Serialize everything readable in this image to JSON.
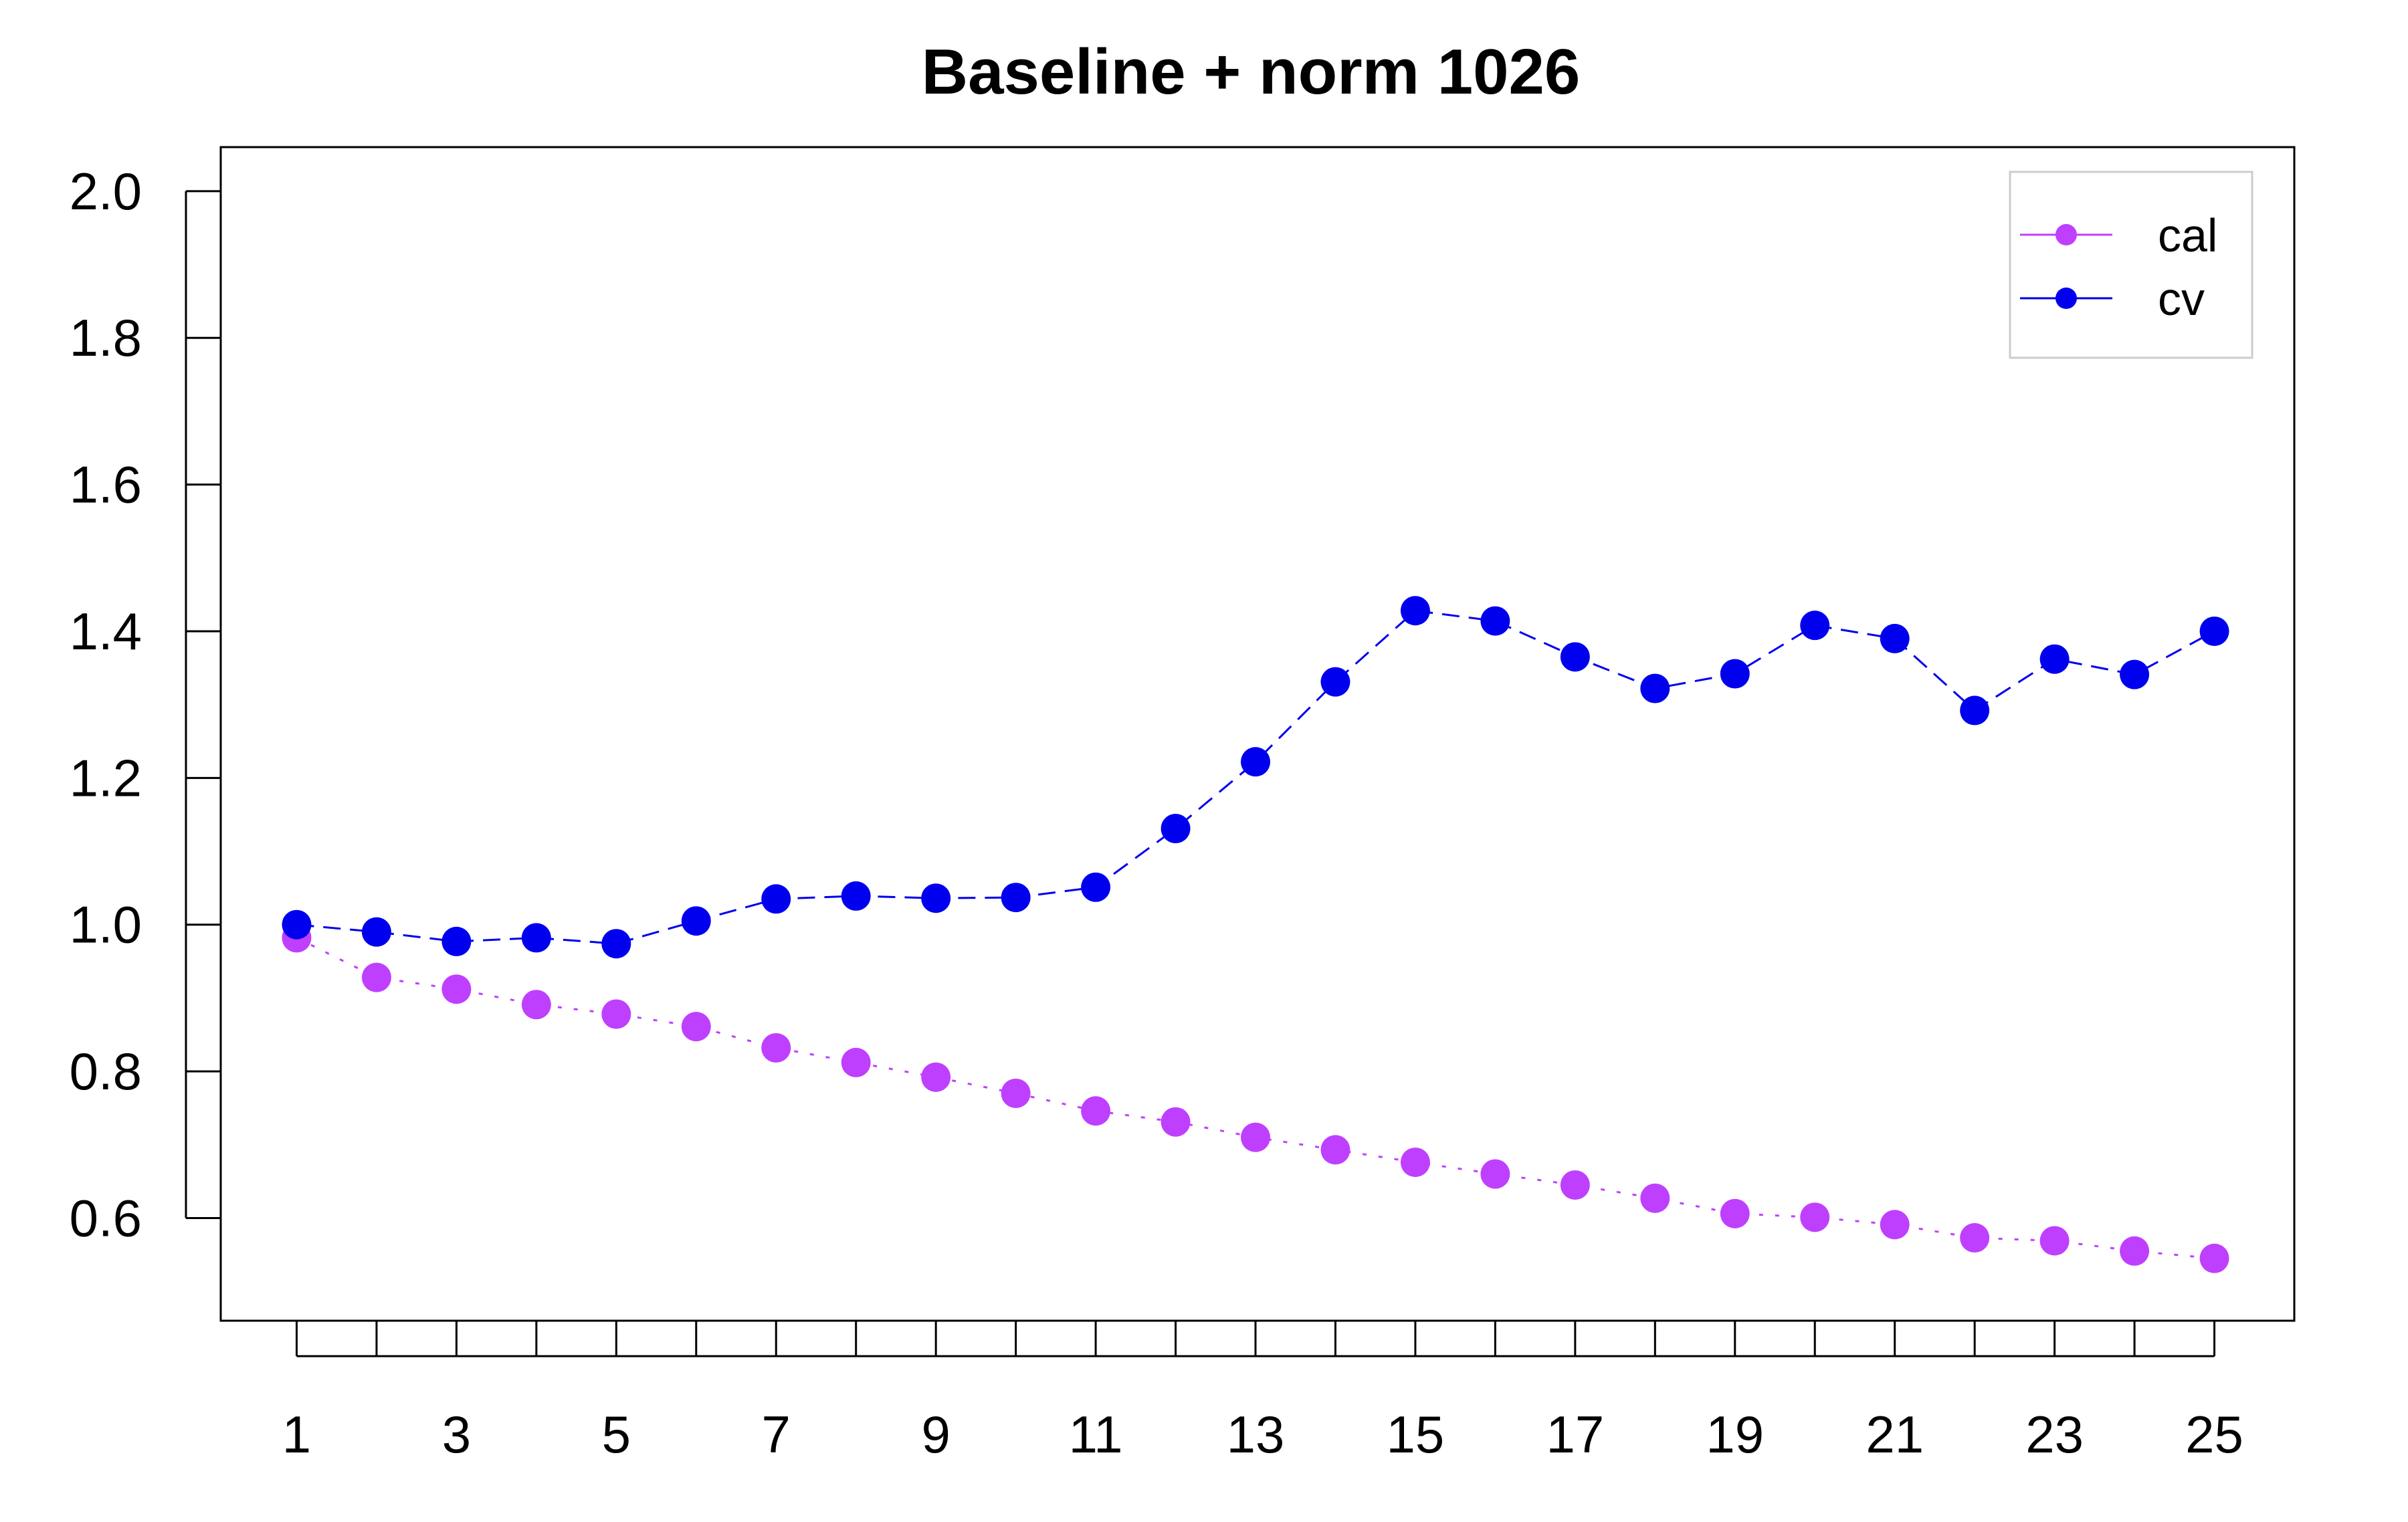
{
  "chart_data": {
    "type": "line",
    "title": "Baseline + norm 1026",
    "xlabel": "",
    "ylabel": "",
    "x": [
      1,
      2,
      3,
      4,
      5,
      6,
      7,
      8,
      9,
      10,
      11,
      12,
      13,
      14,
      15,
      16,
      17,
      18,
      19,
      20,
      21,
      22,
      23,
      24,
      25
    ],
    "x_tick_labels": [
      "1",
      "3",
      "5",
      "7",
      "9",
      "11",
      "13",
      "15",
      "17",
      "19",
      "21",
      "23",
      "25"
    ],
    "y_tick_labels": [
      "0.6",
      "0.8",
      "1.0",
      "1.2",
      "1.4",
      "1.6",
      "1.8",
      "2.0"
    ],
    "xlim": [
      0.05,
      26.0
    ],
    "ylim": [
      0.46,
      2.06
    ],
    "grid": false,
    "legend_position": "top-right",
    "series": [
      {
        "name": "cal",
        "color": "#bf3fff",
        "line_style": "dotted",
        "values": [
          0.982,
          0.928,
          0.912,
          0.891,
          0.878,
          0.861,
          0.832,
          0.812,
          0.792,
          0.77,
          0.746,
          0.731,
          0.71,
          0.693,
          0.676,
          0.66,
          0.645,
          0.627,
          0.606,
          0.601,
          0.591,
          0.573,
          0.569,
          0.555,
          0.545
        ]
      },
      {
        "name": "cv",
        "color": "#0000ee",
        "line_style": "dashed",
        "values": [
          1.0,
          0.99,
          0.977,
          0.982,
          0.974,
          1.005,
          1.035,
          1.039,
          1.036,
          1.037,
          1.051,
          1.131,
          1.222,
          1.331,
          1.428,
          1.414,
          1.365,
          1.322,
          1.342,
          1.408,
          1.39,
          1.292,
          1.362,
          1.341,
          1.4
        ]
      }
    ]
  }
}
